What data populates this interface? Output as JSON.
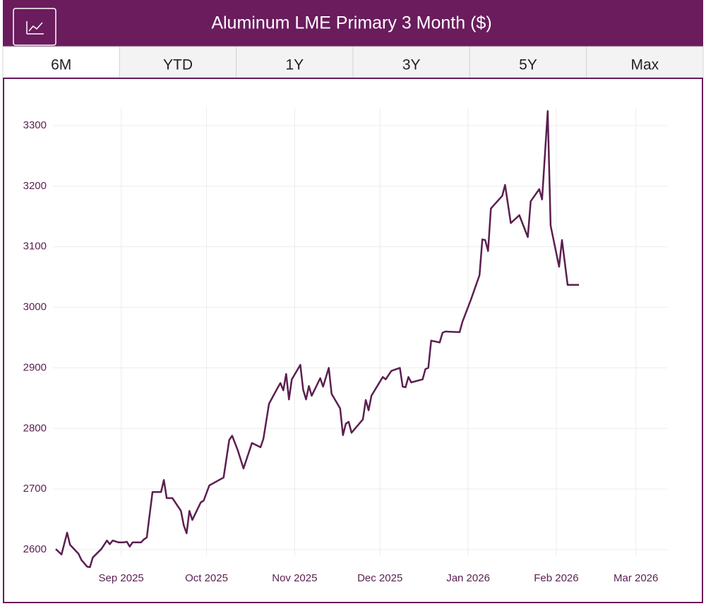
{
  "tabs": [
    "6M",
    "YTD",
    "1Y",
    "3Y",
    "5Y",
    "Max"
  ],
  "chart_data": {
    "type": "line",
    "title": "Aluminum LME Primary 3 Month ($)",
    "color": "#5b1f50",
    "grid": true,
    "x": [
      -23,
      -21,
      -19,
      -18,
      -15,
      -14,
      -12,
      -11,
      -10,
      -7,
      -5,
      -4,
      -3,
      -1,
      1,
      2,
      3,
      4,
      7,
      8,
      9,
      11,
      14,
      15,
      16,
      18,
      21,
      22,
      23,
      24,
      25,
      28,
      29,
      31,
      36,
      38,
      39,
      41,
      43,
      44,
      46,
      49,
      50,
      52,
      55,
      56,
      57,
      58,
      59,
      60,
      63,
      64,
      65,
      66,
      67,
      70,
      71,
      73,
      74,
      77,
      78,
      79,
      80,
      81,
      85,
      86,
      87,
      88,
      92,
      93,
      94,
      95,
      98,
      99,
      100,
      101,
      102,
      106,
      107,
      108,
      109,
      112,
      113,
      114,
      119,
      120,
      123,
      126,
      127,
      128,
      129,
      130,
      134,
      135,
      137,
      140,
      143,
      144,
      147,
      148,
      150,
      151,
      154,
      155,
      157,
      161
    ],
    "values": [
      2601,
      2592,
      2628,
      2608,
      2593,
      2583,
      2572,
      2571,
      2587,
      2601,
      2615,
      2609,
      2615,
      2612,
      2612,
      2613,
      2605,
      2612,
      2612,
      2617,
      2620,
      2695,
      2695,
      2715,
      2685,
      2685,
      2664,
      2640,
      2627,
      2664,
      2649,
      2678,
      2681,
      2706,
      2719,
      2781,
      2788,
      2764,
      2734,
      2748,
      2776,
      2769,
      2783,
      2841,
      2867,
      2875,
      2863,
      2890,
      2848,
      2881,
      2905,
      2864,
      2848,
      2870,
      2854,
      2883,
      2869,
      2900,
      2857,
      2833,
      2789,
      2808,
      2811,
      2793,
      2815,
      2847,
      2830,
      2854,
      2885,
      2881,
      2888,
      2895,
      2900,
      2869,
      2868,
      2885,
      2876,
      2881,
      2898,
      2900,
      2945,
      2942,
      2958,
      2960,
      2959,
      2976,
      3013,
      3053,
      3112,
      3111,
      3093,
      3163,
      3184,
      3202,
      3139,
      3152,
      3116,
      3175,
      3195,
      3178,
      3324,
      3135,
      3067,
      3111,
      3037,
      3037
    ],
    "xlim": [
      -24,
      192
    ],
    "xticks": [
      {
        "value": 0,
        "label": "Sep 2025"
      },
      {
        "value": 30,
        "label": "Oct 2025"
      },
      {
        "value": 61,
        "label": "Nov 2025"
      },
      {
        "value": 91,
        "label": "Dec 2025"
      },
      {
        "value": 122,
        "label": "Jan 2026"
      },
      {
        "value": 153,
        "label": "Feb 2026"
      },
      {
        "value": 181,
        "label": "Mar 2026"
      }
    ],
    "ylim": [
      2590,
      3330
    ],
    "yticks": [
      2600,
      2700,
      2800,
      2900,
      3000,
      3100,
      3200,
      3300
    ]
  }
}
